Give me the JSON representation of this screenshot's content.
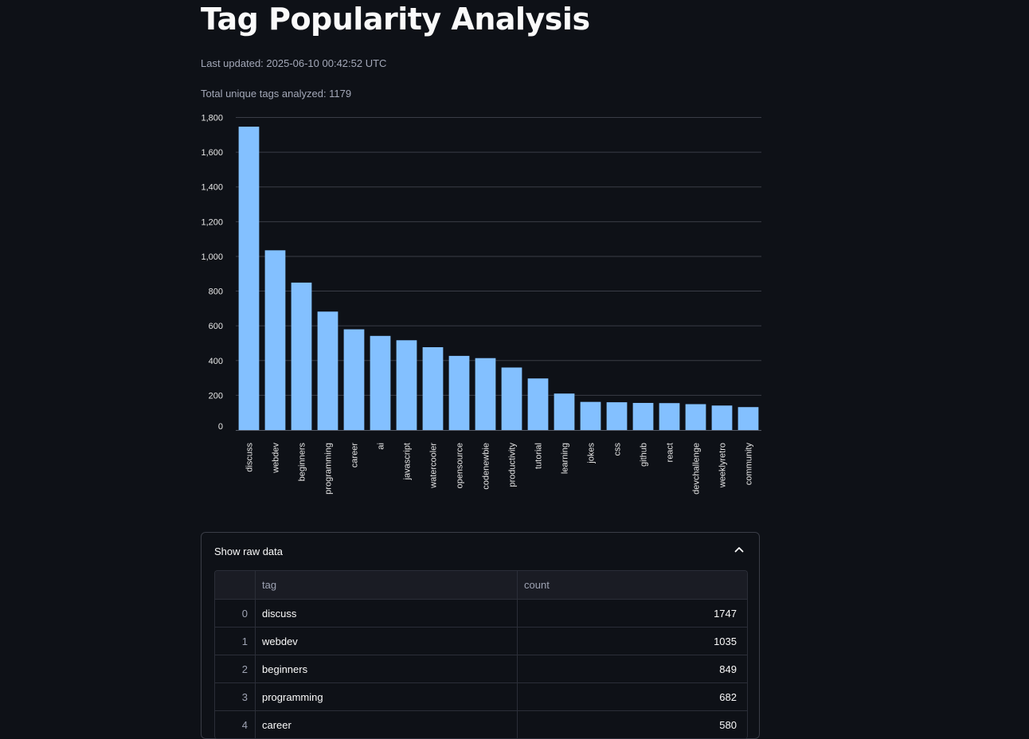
{
  "page": {
    "title": "Tag Popularity Analysis",
    "last_updated": "Last updated: 2025-06-10 00:42:52 UTC",
    "total_tags": "Total unique tags analyzed: 1179"
  },
  "colors": {
    "bar": "#83c0ff",
    "grid": "#3a3d47",
    "tick_text": "#e6e6e6"
  },
  "chart_data": {
    "type": "bar",
    "title": "",
    "xlabel": "",
    "ylabel": "",
    "ylim": [
      0,
      1800
    ],
    "yticks": [
      0,
      200,
      400,
      600,
      800,
      1000,
      1200,
      1400,
      1600,
      1800
    ],
    "ytick_labels": [
      "0",
      "200",
      "400",
      "600",
      "800",
      "1,000",
      "1,200",
      "1,400",
      "1,600",
      "1,800"
    ],
    "categories": [
      "discuss",
      "webdev",
      "beginners",
      "programming",
      "career",
      "ai",
      "javascript",
      "watercooler",
      "opensource",
      "codenewbie",
      "productivity",
      "tutorial",
      "learning",
      "jokes",
      "css",
      "github",
      "react",
      "devchallenge",
      "weeklyretro",
      "community"
    ],
    "values": [
      1747,
      1035,
      849,
      682,
      580,
      542,
      517,
      477,
      427,
      414,
      360,
      297,
      210,
      162,
      160,
      156,
      155,
      149,
      141,
      132
    ],
    "grid": true
  },
  "expander": {
    "label": "Show raw data",
    "expanded": true
  },
  "table": {
    "columns": [
      "",
      "tag",
      "count"
    ],
    "rows": [
      {
        "index": "0",
        "tag": "discuss",
        "count": "1747"
      },
      {
        "index": "1",
        "tag": "webdev",
        "count": "1035"
      },
      {
        "index": "2",
        "tag": "beginners",
        "count": "849"
      },
      {
        "index": "3",
        "tag": "programming",
        "count": "682"
      },
      {
        "index": "4",
        "tag": "career",
        "count": "580"
      }
    ]
  }
}
